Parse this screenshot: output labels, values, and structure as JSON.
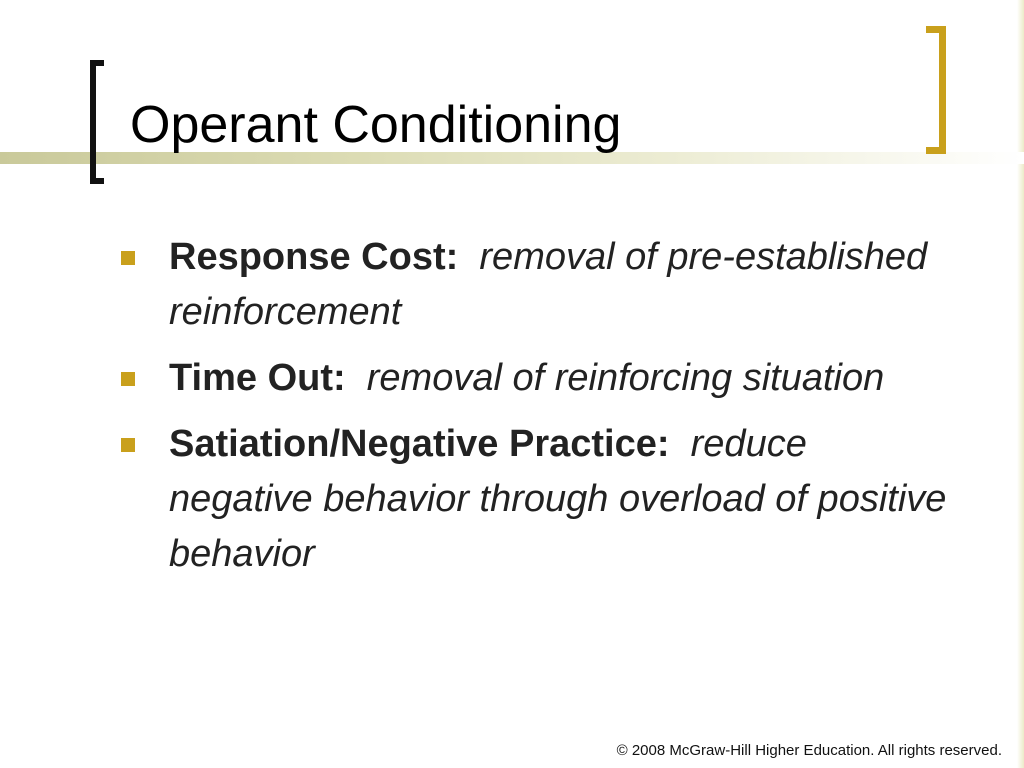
{
  "slide": {
    "title": "Operant Conditioning",
    "bullets": [
      {
        "term": "Response Cost:",
        "definition": "removal of pre-established reinforcement"
      },
      {
        "term": "Time Out:",
        "definition": "removal of reinforcing situation"
      },
      {
        "term": "Satiation/Negative Practice:",
        "definition": "reduce negative behavior through overload of positive behavior"
      }
    ],
    "footer": "© 2008 McGraw-Hill Higher Education. All rights reserved."
  },
  "colors": {
    "accent_gold": "#c9a01c",
    "bracket_black": "#111111",
    "title_band": "#dcdcb4"
  }
}
